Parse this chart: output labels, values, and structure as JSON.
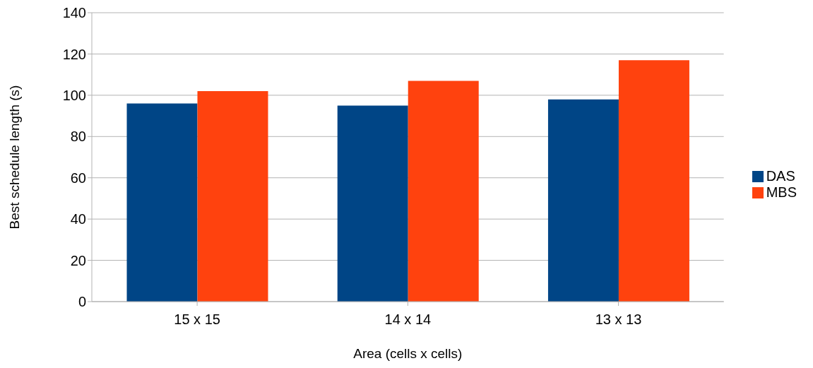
{
  "chart_data": {
    "type": "bar",
    "xlabel": "Area (cells x cells)",
    "ylabel": "Best schedule length (s)",
    "categories": [
      "15 x 15",
      "14 x 14",
      "13 x 13"
    ],
    "series": [
      {
        "name": "DAS",
        "color": "#004586",
        "values": [
          96,
          95,
          98
        ]
      },
      {
        "name": "MBS",
        "color": "#ff420e",
        "values": [
          102,
          107,
          117
        ]
      }
    ],
    "ylim": [
      0,
      140
    ],
    "yticks": [
      0,
      20,
      40,
      60,
      80,
      100,
      120,
      140
    ],
    "grid": "y",
    "legend": "right"
  }
}
